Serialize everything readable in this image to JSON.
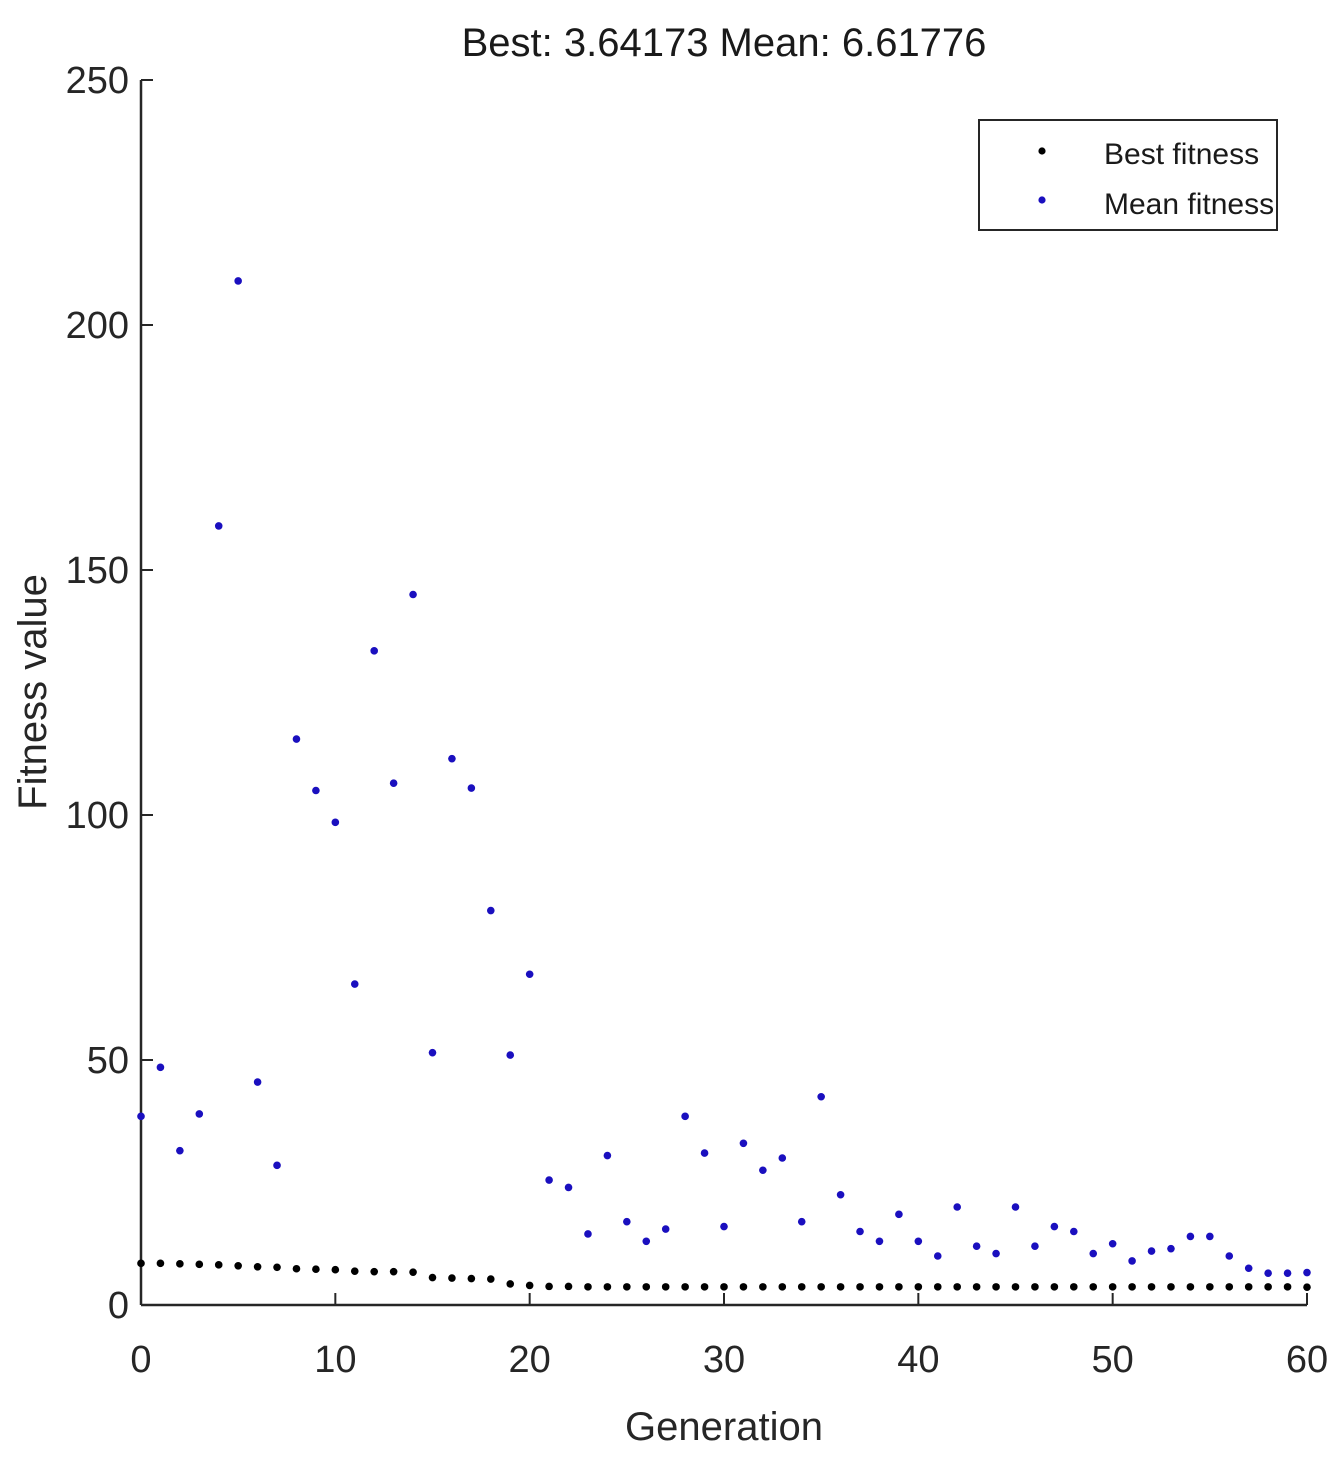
{
  "chart_data": {
    "type": "scatter",
    "title": "Best: 3.64173 Mean: 6.61776",
    "xlabel": "Generation",
    "ylabel": "Fitness value",
    "xlim": [
      0,
      60
    ],
    "ylim": [
      0,
      250
    ],
    "xticks": [
      0,
      10,
      20,
      30,
      40,
      50,
      60
    ],
    "yticks": [
      0,
      50,
      100,
      150,
      200,
      250
    ],
    "xtick_labels": [
      "0",
      "10",
      "20",
      "30",
      "40",
      "50",
      "60"
    ],
    "ytick_labels": [
      "0",
      "50",
      "100",
      "150",
      "200",
      "250"
    ],
    "grid": false,
    "legend_position": "top-right",
    "series": [
      {
        "name": "Best fitness",
        "color": "#000000",
        "x": [
          0,
          1,
          2,
          3,
          4,
          5,
          6,
          7,
          8,
          9,
          10,
          11,
          12,
          13,
          14,
          15,
          16,
          17,
          18,
          19,
          20,
          21,
          22,
          23,
          24,
          25,
          26,
          27,
          28,
          29,
          30,
          31,
          32,
          33,
          34,
          35,
          36,
          37,
          38,
          39,
          40,
          41,
          42,
          43,
          44,
          45,
          46,
          47,
          48,
          49,
          50,
          51,
          52,
          53,
          54,
          55,
          56,
          57,
          58,
          59,
          60
        ],
        "y": [
          8.5,
          8.5,
          8.4,
          8.3,
          8.2,
          8.0,
          7.8,
          7.7,
          7.4,
          7.3,
          7.2,
          6.9,
          6.8,
          6.8,
          6.7,
          5.6,
          5.5,
          5.4,
          5.3,
          4.3,
          4.0,
          3.8,
          3.8,
          3.7,
          3.7,
          3.7,
          3.7,
          3.7,
          3.7,
          3.7,
          3.7,
          3.7,
          3.7,
          3.7,
          3.7,
          3.7,
          3.7,
          3.7,
          3.7,
          3.7,
          3.7,
          3.7,
          3.7,
          3.7,
          3.7,
          3.7,
          3.7,
          3.7,
          3.7,
          3.7,
          3.7,
          3.7,
          3.7,
          3.7,
          3.7,
          3.7,
          3.7,
          3.7,
          3.7,
          3.7,
          3.64
        ]
      },
      {
        "name": "Mean fitness",
        "color": "#1a0fbf",
        "x": [
          0,
          1,
          2,
          3,
          4,
          5,
          6,
          7,
          8,
          9,
          10,
          11,
          12,
          13,
          14,
          15,
          16,
          17,
          18,
          19,
          20,
          21,
          22,
          23,
          24,
          25,
          26,
          27,
          28,
          29,
          30,
          31,
          32,
          33,
          34,
          35,
          36,
          37,
          38,
          39,
          40,
          41,
          42,
          43,
          44,
          45,
          46,
          47,
          48,
          49,
          50,
          51,
          52,
          53,
          54,
          55,
          56,
          57,
          58,
          59,
          60
        ],
        "y": [
          38.5,
          48.5,
          31.5,
          39,
          159,
          209,
          45.5,
          28.5,
          115.5,
          105,
          98.5,
          65.5,
          133.5,
          106.5,
          145,
          51.5,
          111.5,
          105.5,
          80.5,
          51,
          67.5,
          25.5,
          24,
          14.5,
          30.5,
          17,
          13,
          15.5,
          38.5,
          31,
          16,
          33,
          27.5,
          30,
          17,
          42.5,
          22.5,
          15,
          13,
          18.5,
          13,
          10,
          20,
          12,
          10.5,
          20,
          12,
          16,
          15,
          10.5,
          12.5,
          9,
          11,
          11.5,
          14,
          14,
          10,
          7.5,
          6.5,
          6.5,
          6.62
        ]
      }
    ]
  }
}
